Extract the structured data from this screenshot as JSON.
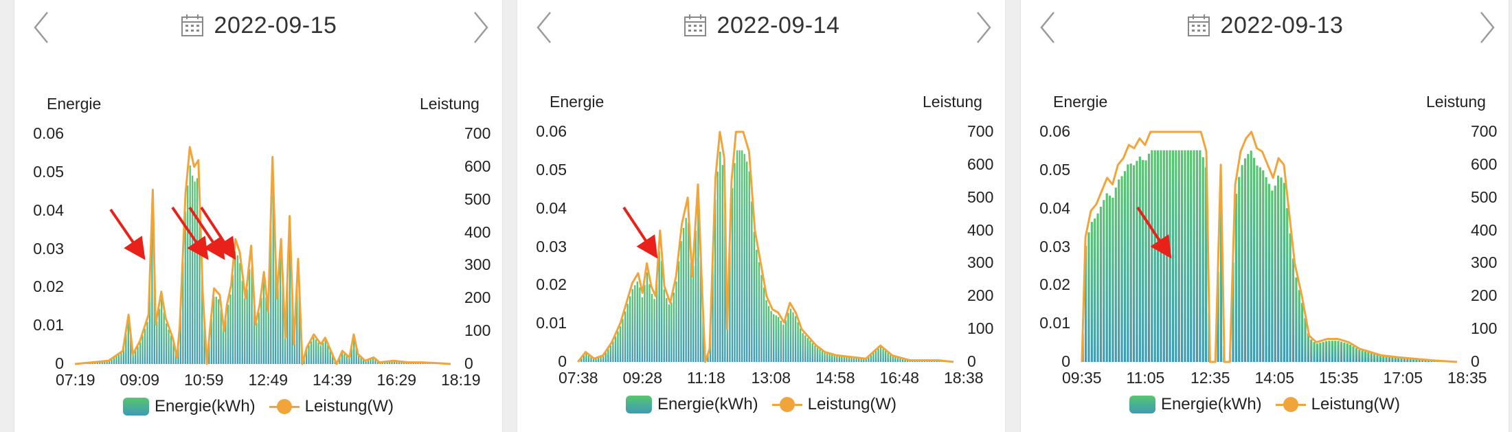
{
  "legend": {
    "energy_label": "Energie(kWh)",
    "power_label": "Leistung(W)"
  },
  "colors": {
    "energy_top": "#58c66e",
    "energy_bottom": "#3c9bb6",
    "power_line": "#f0a43a",
    "annotation_arrow": "#e8221a"
  },
  "icons": {
    "prev": "chevron-left-icon",
    "next": "chevron-right-icon",
    "date": "calendar-icon"
  },
  "chart_data": [
    {
      "type": "bar",
      "date": "2022-09-15",
      "y_left_label": "Energie",
      "y_right_label": "Leistung",
      "y_left_ticks": [
        "0",
        "0.01",
        "0.02",
        "0.03",
        "0.04",
        "0.05",
        "0.06"
      ],
      "y_right_ticks": [
        "0",
        "100",
        "200",
        "300",
        "400",
        "500",
        "600",
        "700"
      ],
      "x_ticks": [
        "07:19",
        "09:09",
        "10:59",
        "12:49",
        "14:39",
        "16:29",
        "18:19"
      ],
      "x_range_hours": [
        7.317,
        20.5
      ],
      "ylim_left": [
        0,
        0.06
      ],
      "ylim_right": [
        0,
        700
      ],
      "series": [
        {
          "name": "Leistung(W)",
          "points": [
            [
              7.32,
              0
            ],
            [
              7.9,
              5
            ],
            [
              8.5,
              10
            ],
            [
              9.0,
              40
            ],
            [
              9.2,
              150
            ],
            [
              9.35,
              30
            ],
            [
              9.6,
              70
            ],
            [
              9.9,
              150
            ],
            [
              10.05,
              530
            ],
            [
              10.15,
              120
            ],
            [
              10.35,
              220
            ],
            [
              10.5,
              140
            ],
            [
              10.75,
              80
            ],
            [
              10.9,
              20
            ],
            [
              11.0,
              120
            ],
            [
              11.2,
              520
            ],
            [
              11.35,
              660
            ],
            [
              11.5,
              600
            ],
            [
              11.65,
              620
            ],
            [
              11.8,
              220
            ],
            [
              11.95,
              0
            ],
            [
              12.05,
              100
            ],
            [
              12.2,
              230
            ],
            [
              12.4,
              210
            ],
            [
              12.55,
              100
            ],
            [
              12.65,
              180
            ],
            [
              12.8,
              240
            ],
            [
              12.95,
              380
            ],
            [
              13.1,
              340
            ],
            [
              13.3,
              200
            ],
            [
              13.5,
              360
            ],
            [
              13.65,
              120
            ],
            [
              13.8,
              180
            ],
            [
              13.95,
              280
            ],
            [
              14.1,
              160
            ],
            [
              14.25,
              630
            ],
            [
              14.4,
              200
            ],
            [
              14.55,
              380
            ],
            [
              14.7,
              80
            ],
            [
              14.85,
              450
            ],
            [
              15.0,
              60
            ],
            [
              15.15,
              320
            ],
            [
              15.3,
              0
            ],
            [
              15.45,
              50
            ],
            [
              15.7,
              90
            ],
            [
              15.95,
              60
            ],
            [
              16.1,
              80
            ],
            [
              16.3,
              40
            ],
            [
              16.5,
              0
            ],
            [
              16.7,
              40
            ],
            [
              16.95,
              20
            ],
            [
              17.1,
              90
            ],
            [
              17.25,
              30
            ],
            [
              17.5,
              10
            ],
            [
              17.8,
              20
            ],
            [
              18.0,
              5
            ],
            [
              18.5,
              10
            ],
            [
              19.0,
              5
            ],
            [
              19.5,
              5
            ],
            [
              20.0,
              3
            ],
            [
              20.5,
              0
            ]
          ]
        }
      ],
      "annotations": [
        "red-arrow",
        "red-arrow",
        "red-arrow",
        "red-arrow"
      ]
    },
    {
      "type": "bar",
      "date": "2022-09-14",
      "y_left_label": "Energie",
      "y_right_label": "Leistung",
      "y_left_ticks": [
        "0",
        "0.01",
        "0.02",
        "0.03",
        "0.04",
        "0.05",
        "0.06"
      ],
      "y_right_ticks": [
        "0",
        "100",
        "200",
        "300",
        "400",
        "500",
        "600",
        "700"
      ],
      "x_ticks": [
        "07:38",
        "09:28",
        "11:18",
        "13:08",
        "14:58",
        "16:48",
        "18:38"
      ],
      "x_range_hours": [
        7.633,
        20.5
      ],
      "ylim_left": [
        0,
        0.06
      ],
      "ylim_right": [
        0,
        700
      ],
      "series": [
        {
          "name": "Leistung(W)",
          "points": [
            [
              7.64,
              0
            ],
            [
              7.9,
              30
            ],
            [
              8.2,
              10
            ],
            [
              8.5,
              20
            ],
            [
              8.8,
              60
            ],
            [
              9.1,
              120
            ],
            [
              9.3,
              180
            ],
            [
              9.5,
              240
            ],
            [
              9.7,
              270
            ],
            [
              9.85,
              210
            ],
            [
              10.0,
              300
            ],
            [
              10.15,
              230
            ],
            [
              10.3,
              200
            ],
            [
              10.45,
              400
            ],
            [
              10.6,
              230
            ],
            [
              10.8,
              180
            ],
            [
              11.0,
              260
            ],
            [
              11.2,
              420
            ],
            [
              11.4,
              500
            ],
            [
              11.55,
              260
            ],
            [
              11.65,
              400
            ],
            [
              11.75,
              540
            ],
            [
              11.9,
              200
            ],
            [
              12.0,
              0
            ],
            [
              12.15,
              40
            ],
            [
              12.35,
              560
            ],
            [
              12.5,
              700
            ],
            [
              12.65,
              620
            ],
            [
              12.75,
              100
            ],
            [
              12.9,
              550
            ],
            [
              13.05,
              700
            ],
            [
              13.3,
              700
            ],
            [
              13.5,
              640
            ],
            [
              13.7,
              400
            ],
            [
              13.9,
              300
            ],
            [
              14.1,
              200
            ],
            [
              14.3,
              160
            ],
            [
              14.5,
              150
            ],
            [
              14.7,
              120
            ],
            [
              14.9,
              180
            ],
            [
              15.1,
              150
            ],
            [
              15.3,
              100
            ],
            [
              15.5,
              80
            ],
            [
              15.8,
              50
            ],
            [
              16.1,
              30
            ],
            [
              16.5,
              20
            ],
            [
              17.0,
              15
            ],
            [
              17.5,
              10
            ],
            [
              18.0,
              50
            ],
            [
              18.4,
              20
            ],
            [
              19.0,
              5
            ],
            [
              20.0,
              5
            ],
            [
              20.5,
              0
            ]
          ]
        }
      ],
      "annotations": [
        "red-arrow"
      ]
    },
    {
      "type": "bar",
      "date": "2022-09-13",
      "y_left_label": "Energie",
      "y_right_label": "Leistung",
      "y_left_ticks": [
        "0",
        "0.01",
        "0.02",
        "0.03",
        "0.04",
        "0.05",
        "0.06"
      ],
      "y_right_ticks": [
        "0",
        "100",
        "200",
        "300",
        "400",
        "500",
        "600",
        "700"
      ],
      "x_ticks": [
        "09:35",
        "11:05",
        "12:35",
        "14:05",
        "15:35",
        "17:05",
        "18:35"
      ],
      "x_range_hours": [
        9.583,
        20.0
      ],
      "ylim_left": [
        0,
        0.06
      ],
      "ylim_right": [
        0,
        700
      ],
      "series": [
        {
          "name": "Leistung(W)",
          "points": [
            [
              9.6,
              0
            ],
            [
              9.7,
              380
            ],
            [
              9.85,
              460
            ],
            [
              10.0,
              480
            ],
            [
              10.15,
              520
            ],
            [
              10.3,
              560
            ],
            [
              10.45,
              540
            ],
            [
              10.6,
              600
            ],
            [
              10.75,
              620
            ],
            [
              10.9,
              660
            ],
            [
              11.05,
              650
            ],
            [
              11.2,
              680
            ],
            [
              11.35,
              660
            ],
            [
              11.5,
              700
            ],
            [
              12.0,
              700
            ],
            [
              12.5,
              700
            ],
            [
              12.9,
              700
            ],
            [
              13.05,
              640
            ],
            [
              13.15,
              0
            ],
            [
              13.3,
              0
            ],
            [
              13.45,
              600
            ],
            [
              13.55,
              0
            ],
            [
              13.7,
              0
            ],
            [
              13.85,
              540
            ],
            [
              14.0,
              640
            ],
            [
              14.15,
              680
            ],
            [
              14.3,
              700
            ],
            [
              14.45,
              650
            ],
            [
              14.6,
              640
            ],
            [
              14.75,
              600
            ],
            [
              14.9,
              560
            ],
            [
              15.05,
              620
            ],
            [
              15.2,
              600
            ],
            [
              15.35,
              450
            ],
            [
              15.5,
              300
            ],
            [
              15.7,
              200
            ],
            [
              15.9,
              80
            ],
            [
              16.1,
              60
            ],
            [
              16.4,
              70
            ],
            [
              16.7,
              70
            ],
            [
              17.0,
              60
            ],
            [
              17.3,
              40
            ],
            [
              17.6,
              30
            ],
            [
              17.9,
              20
            ],
            [
              18.3,
              15
            ],
            [
              18.8,
              10
            ],
            [
              19.3,
              5
            ],
            [
              20.0,
              0
            ]
          ]
        }
      ],
      "annotations": [
        "red-arrow"
      ]
    }
  ]
}
